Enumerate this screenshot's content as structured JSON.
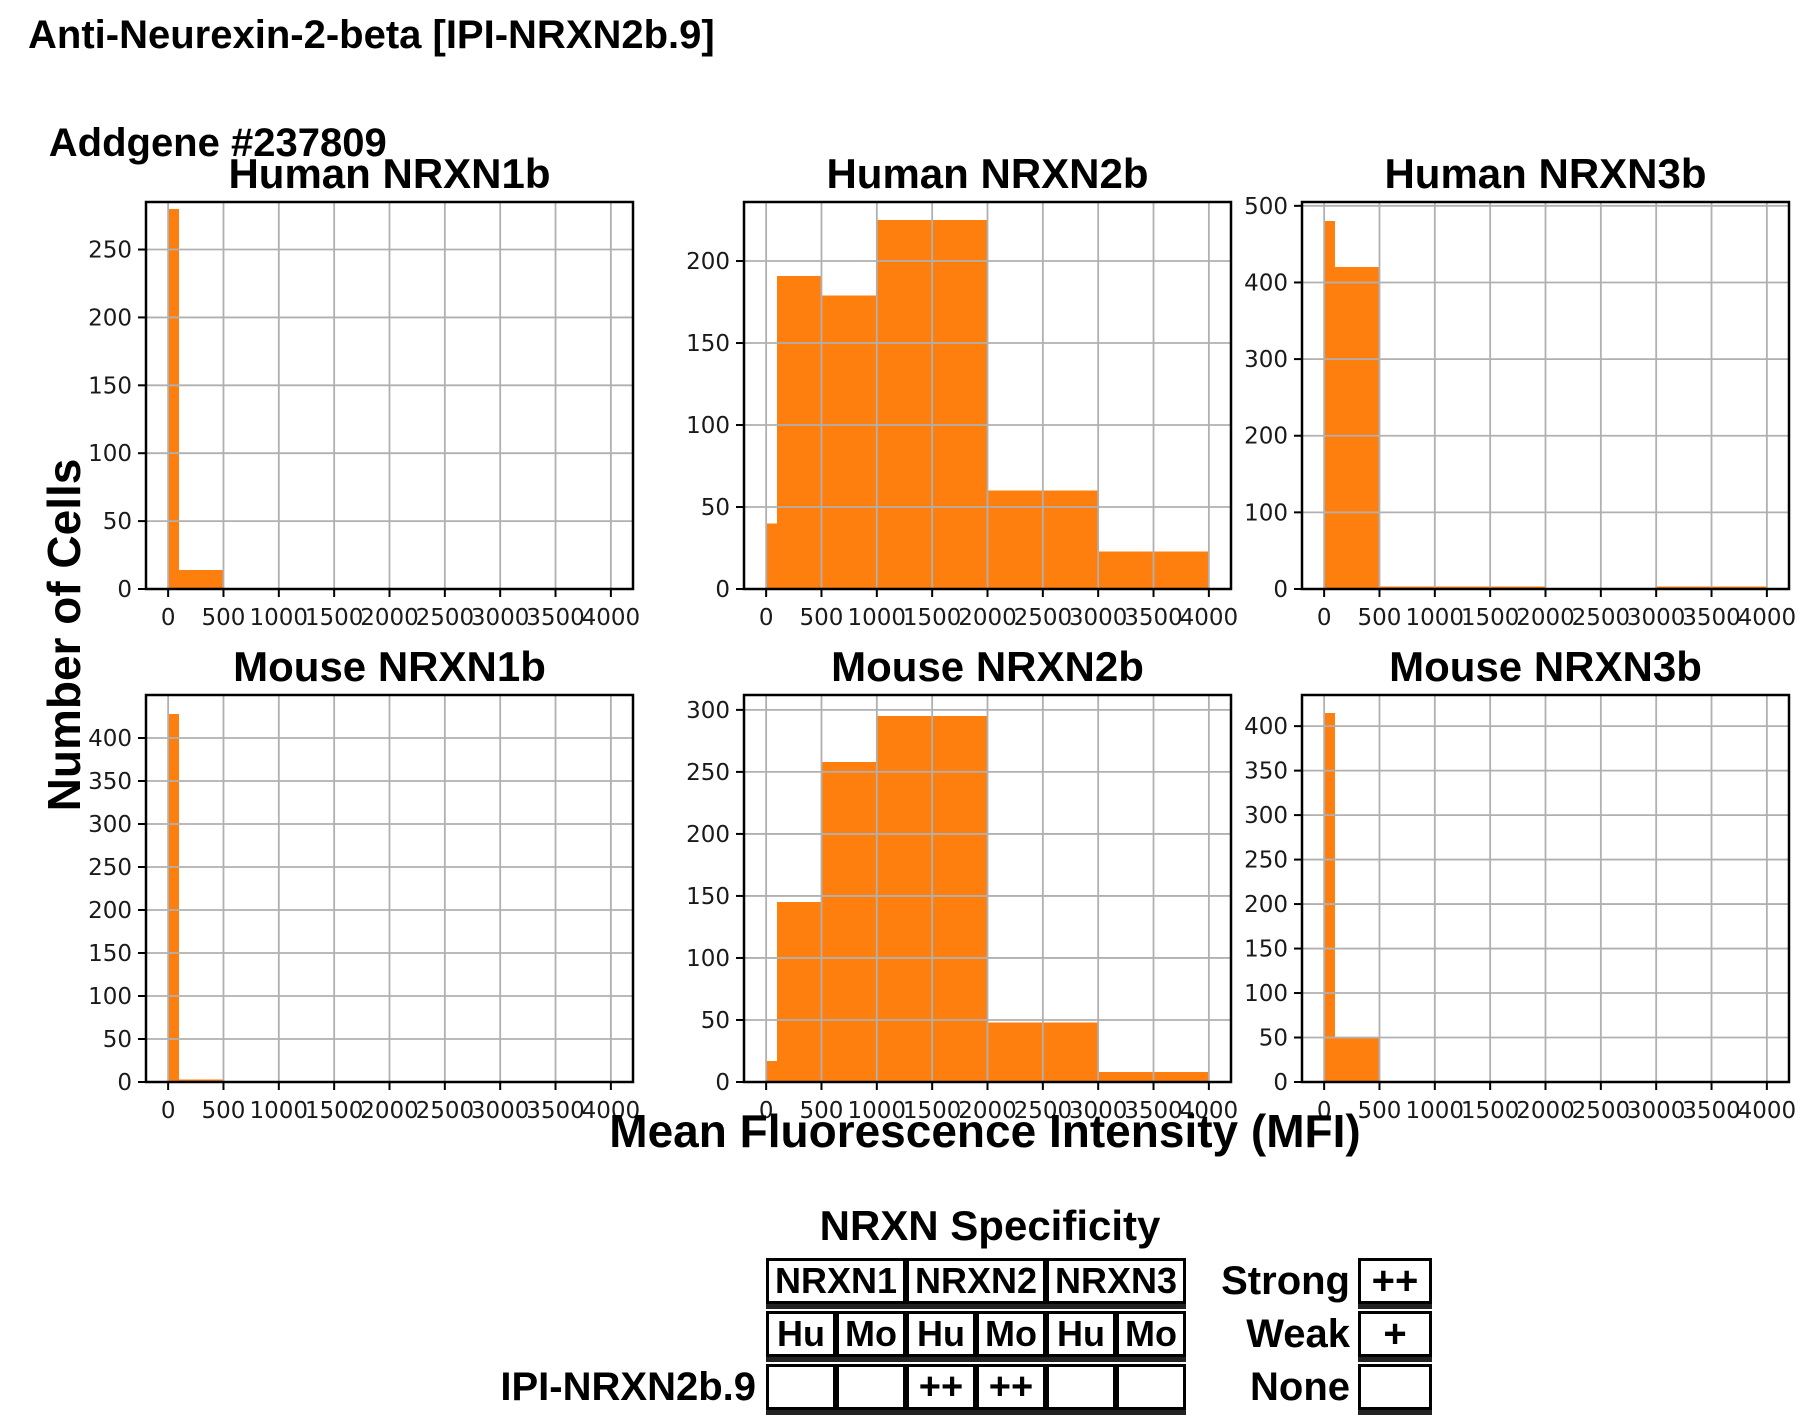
{
  "header": {
    "title_line1": "Anti-Neurexin-2-beta [IPI-NRXN2b.9]",
    "title_line2": "Addgene #237809"
  },
  "figure": {
    "ylabel": "Number of Cells",
    "xlabel": "Mean Fluorescence Intensity (MFI)"
  },
  "chart_data": {
    "type": "bar",
    "subtype": "histogram-grid-2x3",
    "bar_color": "#ff7f0e",
    "grid_color": "#b0b0b0",
    "grid": true,
    "xlabel": "Mean Fluorescence Intensity (MFI)",
    "ylabel": "Number of Cells",
    "xlim": [
      -200,
      4200
    ],
    "x_ticks": [
      0,
      500,
      1000,
      1500,
      2000,
      2500,
      3000,
      3500,
      4000
    ],
    "charts": [
      {
        "title": "Human NRXN1b",
        "ylim": [
          0,
          285
        ],
        "y_ticks": [
          0,
          50,
          100,
          150,
          200,
          250
        ],
        "bins": [
          {
            "x0": 0,
            "x1": 100,
            "count": 280
          },
          {
            "x0": 100,
            "x1": 500,
            "count": 14
          }
        ]
      },
      {
        "title": "Human NRXN2b",
        "ylim": [
          0,
          236
        ],
        "y_ticks": [
          0,
          50,
          100,
          150,
          200
        ],
        "bins": [
          {
            "x0": 0,
            "x1": 100,
            "count": 40
          },
          {
            "x0": 100,
            "x1": 500,
            "count": 191
          },
          {
            "x0": 500,
            "x1": 1000,
            "count": 179
          },
          {
            "x0": 1000,
            "x1": 2000,
            "count": 225
          },
          {
            "x0": 2000,
            "x1": 3000,
            "count": 60
          },
          {
            "x0": 3000,
            "x1": 4000,
            "count": 23
          }
        ]
      },
      {
        "title": "Human NRXN3b",
        "ylim": [
          0,
          505
        ],
        "y_ticks": [
          0,
          100,
          200,
          300,
          400,
          500
        ],
        "bins": [
          {
            "x0": 0,
            "x1": 100,
            "count": 480
          },
          {
            "x0": 100,
            "x1": 500,
            "count": 420
          },
          {
            "x0": 500,
            "x1": 2000,
            "count": 3
          },
          {
            "x0": 3000,
            "x1": 4000,
            "count": 3
          }
        ]
      },
      {
        "title": "Mouse NRXN1b",
        "ylim": [
          0,
          450
        ],
        "y_ticks": [
          0,
          50,
          100,
          150,
          200,
          250,
          300,
          350,
          400
        ],
        "bins": [
          {
            "x0": 0,
            "x1": 100,
            "count": 428
          },
          {
            "x0": 100,
            "x1": 500,
            "count": 3
          }
        ]
      },
      {
        "title": "Mouse NRXN2b",
        "ylim": [
          0,
          312
        ],
        "y_ticks": [
          0,
          50,
          100,
          150,
          200,
          250,
          300
        ],
        "bins": [
          {
            "x0": 0,
            "x1": 100,
            "count": 17
          },
          {
            "x0": 100,
            "x1": 500,
            "count": 145
          },
          {
            "x0": 500,
            "x1": 1000,
            "count": 258
          },
          {
            "x0": 1000,
            "x1": 2000,
            "count": 295
          },
          {
            "x0": 2000,
            "x1": 3000,
            "count": 48
          },
          {
            "x0": 3000,
            "x1": 4000,
            "count": 8
          }
        ]
      },
      {
        "title": "Mouse NRXN3b",
        "ylim": [
          0,
          435
        ],
        "y_ticks": [
          0,
          50,
          100,
          150,
          200,
          250,
          300,
          350,
          400
        ],
        "bins": [
          {
            "x0": 0,
            "x1": 100,
            "count": 415
          },
          {
            "x0": 100,
            "x1": 500,
            "count": 50
          }
        ]
      }
    ]
  },
  "table": {
    "title": "NRXN Specificity",
    "row_label": "IPI-NRXN2b.9",
    "col_groups": [
      "NRXN1",
      "NRXN2",
      "NRXN3"
    ],
    "sub_cols": [
      "Hu",
      "Mo",
      "Hu",
      "Mo",
      "Hu",
      "Mo"
    ],
    "values": [
      "",
      "",
      "++",
      "++",
      "",
      ""
    ]
  },
  "legend": {
    "items": [
      {
        "label": "Strong",
        "symbol": "++"
      },
      {
        "label": "Weak",
        "symbol": "+"
      },
      {
        "label": "None",
        "symbol": ""
      }
    ]
  }
}
